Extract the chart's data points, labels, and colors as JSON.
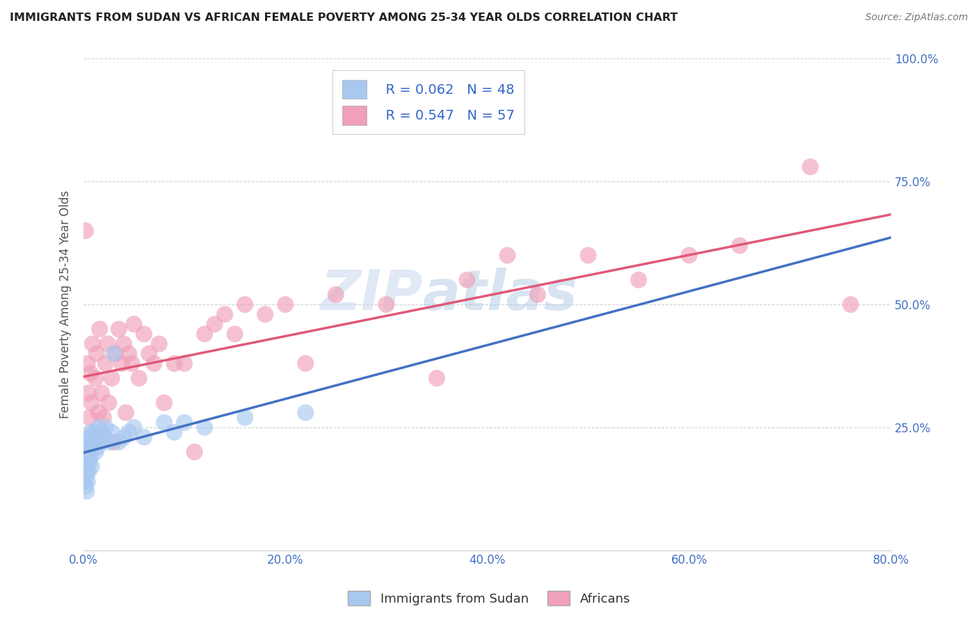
{
  "title": "IMMIGRANTS FROM SUDAN VS AFRICAN FEMALE POVERTY AMONG 25-34 YEAR OLDS CORRELATION CHART",
  "source": "Source: ZipAtlas.com",
  "ylabel": "Female Poverty Among 25-34 Year Olds",
  "legend_labels": [
    "Immigrants from Sudan",
    "Africans"
  ],
  "r_values": [
    0.062,
    0.547
  ],
  "n_values": [
    48,
    57
  ],
  "blue_color": "#a8c8f0",
  "pink_color": "#f0a0b8",
  "blue_line_color": "#4472c4",
  "pink_line_color": "#e05878",
  "text_color": "#3366cc",
  "xlim": [
    0.0,
    0.8
  ],
  "ylim": [
    0.0,
    1.0
  ],
  "x_ticks": [
    0.0,
    0.2,
    0.4,
    0.6,
    0.8
  ],
  "x_tick_labels": [
    "0.0%",
    "20.0%",
    "40.0%",
    "60.0%",
    "80.0%"
  ],
  "y_ticks": [
    0.25,
    0.5,
    0.75,
    1.0
  ],
  "y_tick_labels": [
    "25.0%",
    "50.0%",
    "75.0%",
    "100.0%"
  ],
  "blue_x": [
    0.001,
    0.001,
    0.001,
    0.002,
    0.002,
    0.002,
    0.002,
    0.003,
    0.003,
    0.003,
    0.003,
    0.004,
    0.004,
    0.004,
    0.005,
    0.005,
    0.005,
    0.006,
    0.006,
    0.007,
    0.007,
    0.008,
    0.008,
    0.009,
    0.01,
    0.011,
    0.012,
    0.013,
    0.014,
    0.015,
    0.016,
    0.018,
    0.02,
    0.022,
    0.025,
    0.028,
    0.03,
    0.035,
    0.04,
    0.045,
    0.05,
    0.06,
    0.08,
    0.09,
    0.1,
    0.12,
    0.16,
    0.22
  ],
  "blue_y": [
    0.18,
    0.16,
    0.14,
    0.2,
    0.17,
    0.15,
    0.13,
    0.22,
    0.19,
    0.16,
    0.12,
    0.21,
    0.18,
    0.14,
    0.23,
    0.2,
    0.16,
    0.22,
    0.18,
    0.24,
    0.19,
    0.23,
    0.17,
    0.21,
    0.22,
    0.24,
    0.2,
    0.23,
    0.21,
    0.25,
    0.22,
    0.24,
    0.23,
    0.25,
    0.22,
    0.24,
    0.4,
    0.22,
    0.23,
    0.24,
    0.25,
    0.23,
    0.26,
    0.24,
    0.26,
    0.25,
    0.27,
    0.28
  ],
  "pink_x": [
    0.002,
    0.003,
    0.004,
    0.005,
    0.006,
    0.007,
    0.008,
    0.009,
    0.01,
    0.012,
    0.013,
    0.015,
    0.016,
    0.018,
    0.02,
    0.022,
    0.024,
    0.025,
    0.028,
    0.03,
    0.032,
    0.035,
    0.038,
    0.04,
    0.042,
    0.045,
    0.048,
    0.05,
    0.055,
    0.06,
    0.065,
    0.07,
    0.075,
    0.08,
    0.09,
    0.1,
    0.11,
    0.12,
    0.13,
    0.14,
    0.15,
    0.16,
    0.18,
    0.2,
    0.22,
    0.25,
    0.3,
    0.35,
    0.38,
    0.42,
    0.45,
    0.5,
    0.55,
    0.6,
    0.65,
    0.72,
    0.76
  ],
  "pink_y": [
    0.65,
    0.2,
    0.38,
    0.32,
    0.27,
    0.36,
    0.3,
    0.42,
    0.22,
    0.35,
    0.4,
    0.28,
    0.45,
    0.32,
    0.27,
    0.38,
    0.42,
    0.3,
    0.35,
    0.22,
    0.4,
    0.45,
    0.38,
    0.42,
    0.28,
    0.4,
    0.38,
    0.46,
    0.35,
    0.44,
    0.4,
    0.38,
    0.42,
    0.3,
    0.38,
    0.38,
    0.2,
    0.44,
    0.46,
    0.48,
    0.44,
    0.5,
    0.48,
    0.5,
    0.38,
    0.52,
    0.5,
    0.35,
    0.55,
    0.6,
    0.52,
    0.6,
    0.55,
    0.6,
    0.62,
    0.78,
    0.5
  ],
  "watermark_zip": "ZIP",
  "watermark_atlas": "atlas",
  "figsize": [
    14.06,
    8.92
  ],
  "dpi": 100
}
